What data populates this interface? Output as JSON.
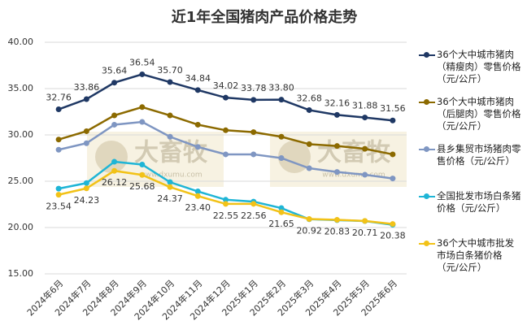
{
  "chart_data": {
    "type": "line",
    "title": "近1年全国猪肉产品价格走势",
    "categories": [
      "2024年6月",
      "2024年7月",
      "2024年8月",
      "2024年9月",
      "2024年10月",
      "2024年11月",
      "2024年12月",
      "2025年1月",
      "2025年2月",
      "2025年3月",
      "2025年4月",
      "2025年5月",
      "2025年6月"
    ],
    "ylim": [
      15,
      40
    ],
    "yticks": [
      {
        "value": 15,
        "label": "15.00"
      },
      {
        "value": 20,
        "label": "20.00"
      },
      {
        "value": 25,
        "label": "25.00"
      },
      {
        "value": 30,
        "label": "30.00"
      },
      {
        "value": 35,
        "label": "35.00"
      },
      {
        "value": 40,
        "label": "40.00"
      }
    ],
    "grid": true,
    "watermark": "大畜牧",
    "watermark_url": "www.dxumu.com",
    "series": [
      {
        "name": "36个大中城市猪肉（精瘦肉）零售价格（元/公斤）",
        "color": "#1f3864",
        "values": [
          32.76,
          33.86,
          35.64,
          36.54,
          35.7,
          34.84,
          34.02,
          33.78,
          33.8,
          32.68,
          32.16,
          31.88,
          31.56
        ],
        "value_labels": [
          "32.76",
          "33.86",
          "35.64",
          "36.54",
          "35.70",
          "34.84",
          "34.02",
          "33.78",
          "33.80",
          "32.68",
          "32.16",
          "31.88",
          "31.56"
        ]
      },
      {
        "name": "36个大中城市猪肉（后腿肉）零售价格（元/公斤）",
        "color": "#8c6a00",
        "values": [
          29.5,
          30.4,
          32.1,
          33.0,
          32.1,
          31.1,
          30.5,
          30.3,
          29.8,
          29.0,
          28.8,
          28.5,
          27.9
        ]
      },
      {
        "name": "县乡集贸市场猪肉零售价格（元/公斤）",
        "color": "#7f96c2",
        "values": [
          28.4,
          29.1,
          31.1,
          31.4,
          29.8,
          28.7,
          27.9,
          27.9,
          27.5,
          26.4,
          26.0,
          25.7,
          25.3
        ]
      },
      {
        "name": "全国批发市场白条猪价格（元/公斤）",
        "color": "#1fb5d6",
        "values": [
          24.2,
          24.8,
          27.1,
          26.8,
          24.9,
          23.9,
          23.0,
          22.8,
          22.1,
          20.9,
          20.8,
          20.7,
          20.3
        ]
      },
      {
        "name": "36个大中城市批发市场白条猪价格（元/公斤）",
        "color": "#f2c218",
        "values": [
          23.54,
          24.23,
          26.12,
          25.68,
          24.37,
          23.4,
          22.55,
          22.56,
          21.65,
          20.92,
          20.83,
          20.71,
          20.38
        ],
        "value_labels": [
          "23.54",
          "24.23",
          "26.12",
          "25.68",
          "24.37",
          "23.40",
          "22.55",
          "22.56",
          "21.65",
          "20.92",
          "20.83",
          "20.71",
          "20.38"
        ]
      }
    ]
  }
}
